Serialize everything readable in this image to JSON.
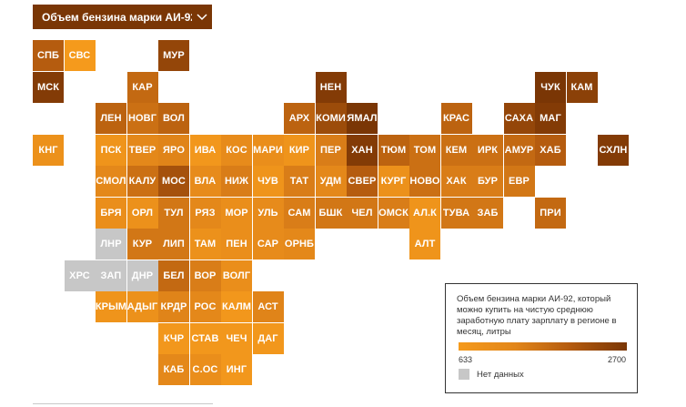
{
  "dropdown": {
    "label": "Объем бензина марки АИ-92,...",
    "icon": "chevron-down-icon"
  },
  "legend": {
    "title": "Объем бензина марки АИ-92, который можно купить на чистую среднюю заработную плату зарплату в регионе в месяц, литры",
    "min": "633",
    "max": "2700",
    "no_data": "Нет данных"
  },
  "colors": {
    "low": "#f59a1c",
    "high": "#7a3605",
    "no_data": "#c7c7c7"
  },
  "regions": [
    {
      "label": "СПБ",
      "col": 0,
      "row": 0,
      "v": 0.65
    },
    {
      "label": "СВС",
      "col": 1,
      "row": 0,
      "v": 0.0
    },
    {
      "label": "МУР",
      "col": 4,
      "row": 0,
      "v": 0.85
    },
    {
      "label": "МСК",
      "col": 0,
      "row": 1,
      "v": 0.95
    },
    {
      "label": "КАР",
      "col": 3,
      "row": 1,
      "v": 0.55
    },
    {
      "label": "НЕН",
      "col": 9,
      "row": 1,
      "v": 0.95
    },
    {
      "label": "ЧУК",
      "col": 16,
      "row": 1,
      "v": 1.0
    },
    {
      "label": "КАМ",
      "col": 17,
      "row": 1,
      "v": 0.9
    },
    {
      "label": "ЛЕН",
      "col": 2,
      "row": 2,
      "v": 0.6
    },
    {
      "label": "НОВГ",
      "col": 3,
      "row": 2,
      "v": 0.5
    },
    {
      "label": "ВОЛ",
      "col": 4,
      "row": 2,
      "v": 0.6
    },
    {
      "label": "АРХ",
      "col": 8,
      "row": 2,
      "v": 0.6
    },
    {
      "label": "КОМИ",
      "col": 9,
      "row": 2,
      "v": 0.8
    },
    {
      "label": "ЯМАЛ",
      "col": 10,
      "row": 2,
      "v": 1.0
    },
    {
      "label": "КРАС",
      "col": 13,
      "row": 2,
      "v": 0.6
    },
    {
      "label": "САХА",
      "col": 15,
      "row": 2,
      "v": 0.85
    },
    {
      "label": "МАГ",
      "col": 16,
      "row": 2,
      "v": 0.95
    },
    {
      "label": "КНГ",
      "col": 0,
      "row": 3,
      "v": 0.15
    },
    {
      "label": "ПСК",
      "col": 2,
      "row": 3,
      "v": 0.1
    },
    {
      "label": "ТВЕР",
      "col": 3,
      "row": 3,
      "v": 0.3
    },
    {
      "label": "ЯРО",
      "col": 4,
      "row": 3,
      "v": 0.35
    },
    {
      "label": "ИВА",
      "col": 5,
      "row": 3,
      "v": 0.05
    },
    {
      "label": "КОС",
      "col": 6,
      "row": 3,
      "v": 0.25
    },
    {
      "label": "МАРИ",
      "col": 7,
      "row": 3,
      "v": 0.2
    },
    {
      "label": "КИР",
      "col": 8,
      "row": 3,
      "v": 0.1
    },
    {
      "label": "ПЕР",
      "col": 9,
      "row": 3,
      "v": 0.4
    },
    {
      "label": "ХАН",
      "col": 10,
      "row": 3,
      "v": 0.95
    },
    {
      "label": "ТЮМ",
      "col": 11,
      "row": 3,
      "v": 0.6
    },
    {
      "label": "ТОМ",
      "col": 12,
      "row": 3,
      "v": 0.5
    },
    {
      "label": "КЕМ",
      "col": 13,
      "row": 3,
      "v": 0.5
    },
    {
      "label": "ИРК",
      "col": 14,
      "row": 3,
      "v": 0.5
    },
    {
      "label": "АМУР",
      "col": 15,
      "row": 3,
      "v": 0.55
    },
    {
      "label": "ХАБ",
      "col": 16,
      "row": 3,
      "v": 0.65
    },
    {
      "label": "СХЛН",
      "col": 18,
      "row": 3,
      "v": 0.95
    },
    {
      "label": "СМОЛ",
      "col": 2,
      "row": 4,
      "v": 0.3
    },
    {
      "label": "КАЛУ",
      "col": 3,
      "row": 4,
      "v": 0.5
    },
    {
      "label": "МОС",
      "col": 4,
      "row": 4,
      "v": 0.75
    },
    {
      "label": "ВЛА",
      "col": 5,
      "row": 4,
      "v": 0.25
    },
    {
      "label": "НИЖ",
      "col": 6,
      "row": 4,
      "v": 0.4
    },
    {
      "label": "ЧУВ",
      "col": 7,
      "row": 4,
      "v": 0.1
    },
    {
      "label": "ТАТ",
      "col": 8,
      "row": 4,
      "v": 0.4
    },
    {
      "label": "УДМ",
      "col": 9,
      "row": 4,
      "v": 0.3
    },
    {
      "label": "СВЕР",
      "col": 10,
      "row": 4,
      "v": 0.65
    },
    {
      "label": "КУРГ",
      "col": 11,
      "row": 4,
      "v": 0.15
    },
    {
      "label": "НОВО",
      "col": 12,
      "row": 4,
      "v": 0.5
    },
    {
      "label": "ХАК",
      "col": 13,
      "row": 4,
      "v": 0.4
    },
    {
      "label": "БУР",
      "col": 14,
      "row": 4,
      "v": 0.4
    },
    {
      "label": "ЕВР",
      "col": 15,
      "row": 4,
      "v": 0.45
    },
    {
      "label": "БРЯ",
      "col": 2,
      "row": 5,
      "v": 0.2
    },
    {
      "label": "ОРЛ",
      "col": 3,
      "row": 5,
      "v": 0.15
    },
    {
      "label": "ТУЛ",
      "col": 4,
      "row": 5,
      "v": 0.45
    },
    {
      "label": "РЯЗ",
      "col": 5,
      "row": 5,
      "v": 0.3
    },
    {
      "label": "МОР",
      "col": 6,
      "row": 5,
      "v": 0.2
    },
    {
      "label": "УЛЬ",
      "col": 7,
      "row": 5,
      "v": 0.25
    },
    {
      "label": "САМ",
      "col": 8,
      "row": 5,
      "v": 0.4
    },
    {
      "label": "БШК",
      "col": 9,
      "row": 5,
      "v": 0.45
    },
    {
      "label": "ЧЕЛ",
      "col": 10,
      "row": 5,
      "v": 0.45
    },
    {
      "label": "ОМСК",
      "col": 11,
      "row": 5,
      "v": 0.4
    },
    {
      "label": "АЛ.К",
      "col": 12,
      "row": 5,
      "v": 0.1
    },
    {
      "label": "ТУВА",
      "col": 13,
      "row": 5,
      "v": 0.45
    },
    {
      "label": "ЗАБ",
      "col": 14,
      "row": 5,
      "v": 0.45
    },
    {
      "label": "ПРИ",
      "col": 16,
      "row": 5,
      "v": 0.55
    },
    {
      "label": "ЛНР",
      "col": 2,
      "row": 6,
      "v": null
    },
    {
      "label": "КУР",
      "col": 3,
      "row": 6,
      "v": 0.45
    },
    {
      "label": "ЛИП",
      "col": 4,
      "row": 6,
      "v": 0.45
    },
    {
      "label": "ТАМ",
      "col": 5,
      "row": 6,
      "v": 0.15
    },
    {
      "label": "ПЕН",
      "col": 6,
      "row": 6,
      "v": 0.2
    },
    {
      "label": "САР",
      "col": 7,
      "row": 6,
      "v": 0.25
    },
    {
      "label": "ОРНБ",
      "col": 8,
      "row": 6,
      "v": 0.3
    },
    {
      "label": "АЛТ",
      "col": 12,
      "row": 6,
      "v": 0.1
    },
    {
      "label": "ХРС",
      "col": 1,
      "row": 7,
      "v": null
    },
    {
      "label": "ЗАП",
      "col": 2,
      "row": 7,
      "v": null
    },
    {
      "label": "ДНР",
      "col": 3,
      "row": 7,
      "v": null
    },
    {
      "label": "БЕЛ",
      "col": 4,
      "row": 7,
      "v": 0.55
    },
    {
      "label": "ВОР",
      "col": 5,
      "row": 7,
      "v": 0.4
    },
    {
      "label": "ВОЛГ",
      "col": 6,
      "row": 7,
      "v": 0.2
    },
    {
      "label": "КРЫМ",
      "col": 2,
      "row": 8,
      "v": 0.1
    },
    {
      "label": "АДЫГ",
      "col": 3,
      "row": 8,
      "v": 0.15
    },
    {
      "label": "КРДР",
      "col": 4,
      "row": 8,
      "v": 0.35
    },
    {
      "label": "РОС",
      "col": 5,
      "row": 8,
      "v": 0.3
    },
    {
      "label": "КАЛМ",
      "col": 6,
      "row": 8,
      "v": 0.05
    },
    {
      "label": "АСТ",
      "col": 7,
      "row": 8,
      "v": 0.35
    },
    {
      "label": "КЧР",
      "col": 4,
      "row": 9,
      "v": 0.05
    },
    {
      "label": "СТАВ",
      "col": 5,
      "row": 9,
      "v": 0.05
    },
    {
      "label": "ЧЕЧ",
      "col": 6,
      "row": 9,
      "v": 0.05
    },
    {
      "label": "ДАГ",
      "col": 7,
      "row": 9,
      "v": 0.05
    },
    {
      "label": "КАБ",
      "col": 4,
      "row": 10,
      "v": 0.3
    },
    {
      "label": "С.ОС",
      "col": 5,
      "row": 10,
      "v": 0.2
    },
    {
      "label": "ИНГ",
      "col": 6,
      "row": 10,
      "v": 0.05
    }
  ]
}
